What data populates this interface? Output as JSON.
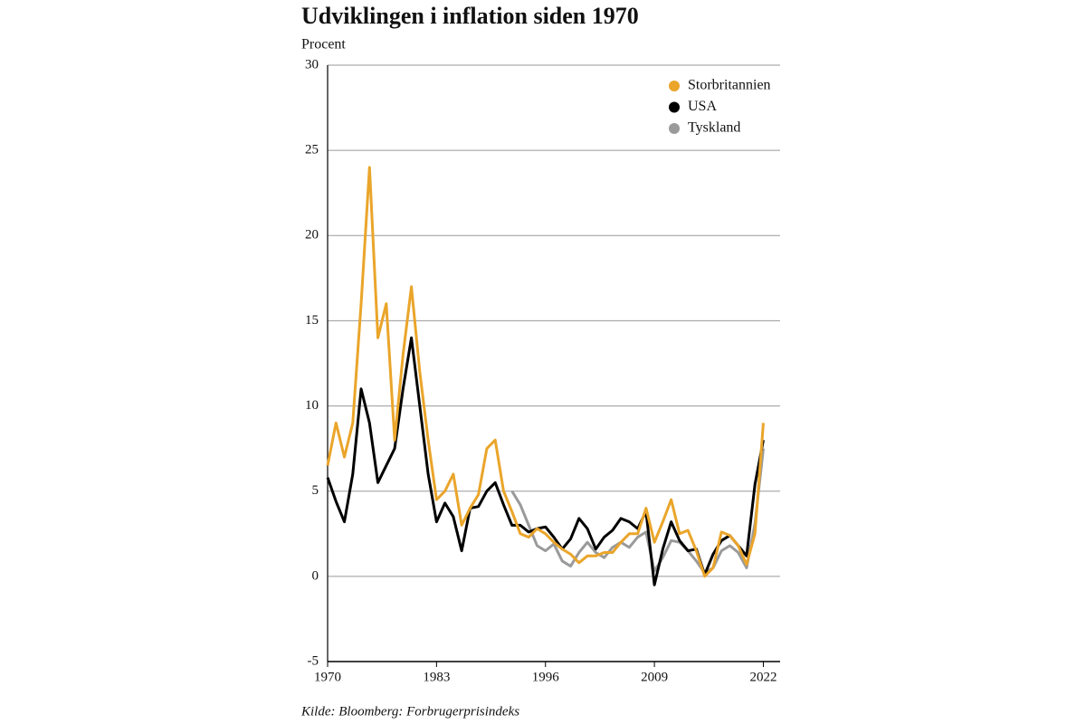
{
  "chart_data": {
    "type": "line",
    "title": "Udviklingen i inflation siden 1970",
    "y_label": "Procent",
    "source": "Kilde: Bloomberg: Forbrugerprisindeks",
    "legend": "top-right",
    "grid": true,
    "xlim": [
      1970,
      2024
    ],
    "xticks": [
      1970,
      1983,
      1996,
      2009,
      2022
    ],
    "ylim": [
      -5,
      30
    ],
    "yticks": [
      -5,
      0,
      5,
      10,
      15,
      20,
      25,
      30
    ],
    "x": [
      1970,
      1971,
      1972,
      1973,
      1974,
      1975,
      1976,
      1977,
      1978,
      1979,
      1980,
      1981,
      1982,
      1983,
      1984,
      1985,
      1986,
      1987,
      1988,
      1989,
      1990,
      1991,
      1992,
      1993,
      1994,
      1995,
      1996,
      1997,
      1998,
      1999,
      2000,
      2001,
      2002,
      2003,
      2004,
      2005,
      2006,
      2007,
      2008,
      2009,
      2010,
      2011,
      2012,
      2013,
      2014,
      2015,
      2016,
      2017,
      2018,
      2019,
      2020,
      2021,
      2022
    ],
    "series": [
      {
        "name": "Storbritannien",
        "color": "#eaa52a",
        "values": [
          6.5,
          9.0,
          7.0,
          9.0,
          16,
          24,
          14,
          16,
          8,
          13,
          17,
          12,
          8,
          4.5,
          5,
          6,
          3,
          4,
          4.8,
          7.5,
          8,
          5,
          3.8,
          2.5,
          2.3,
          2.8,
          2.5,
          2.0,
          1.6,
          1.3,
          0.8,
          1.2,
          1.2,
          1.4,
          1.4,
          2.0,
          2.5,
          2.5,
          4.0,
          2.0,
          3.2,
          4.5,
          2.5,
          2.7,
          1.5,
          0.0,
          0.5,
          2.6,
          2.4,
          1.8,
          0.7,
          2.5,
          9.0
        ]
      },
      {
        "name": "USA",
        "color": "#000000",
        "values": [
          5.8,
          4.4,
          3.2,
          6,
          11,
          9,
          5.5,
          6.5,
          7.5,
          11,
          14,
          10,
          6,
          3.2,
          4.3,
          3.5,
          1.5,
          4,
          4.1,
          5,
          5.5,
          4.2,
          3.0,
          3.0,
          2.6,
          2.8,
          2.9,
          2.3,
          1.6,
          2.2,
          3.4,
          2.8,
          1.6,
          2.3,
          2.7,
          3.4,
          3.2,
          2.8,
          3.8,
          -0.5,
          1.6,
          3.2,
          2.1,
          1.5,
          1.6,
          0.1,
          1.3,
          2.1,
          2.4,
          1.8,
          1.2,
          5.4,
          8.0
        ]
      },
      {
        "name": "Tyskland",
        "color": "#9a9a9a",
        "values": [
          null,
          null,
          null,
          null,
          null,
          null,
          null,
          null,
          null,
          null,
          null,
          null,
          null,
          null,
          null,
          null,
          null,
          null,
          null,
          null,
          null,
          null,
          5,
          4.2,
          3,
          1.8,
          1.5,
          1.9,
          0.9,
          0.6,
          1.4,
          2.0,
          1.4,
          1.1,
          1.7,
          2.0,
          1.7,
          2.3,
          2.6,
          0.3,
          1.1,
          2.1,
          2.0,
          1.5,
          0.9,
          0.2,
          0.5,
          1.5,
          1.8,
          1.4,
          0.5,
          3.1,
          7.5
        ]
      }
    ]
  }
}
